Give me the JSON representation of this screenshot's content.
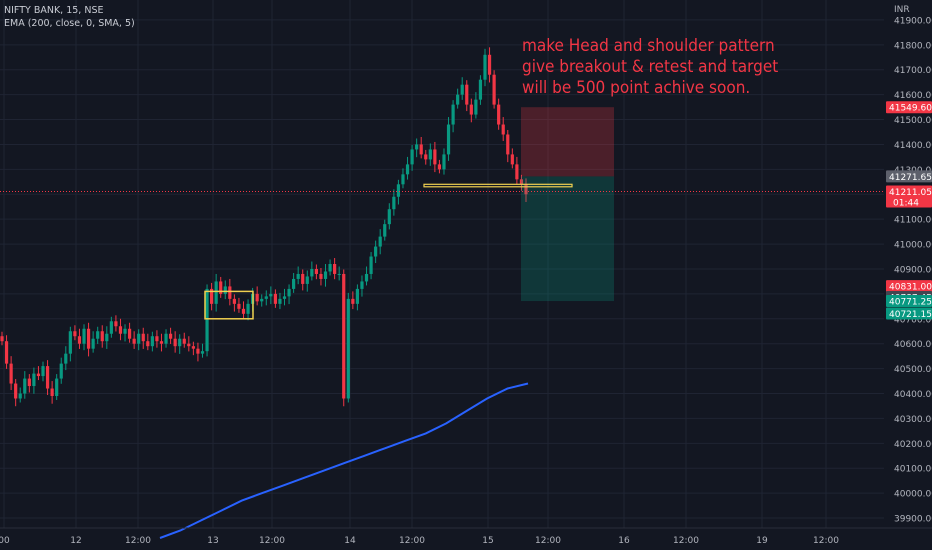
{
  "header": {
    "symbol_line": "NIFTY BANK, 15, NSE",
    "indicator_line": "EMA (200, close, 0, SMA, 5)",
    "currency": "INR"
  },
  "annotation": {
    "lines": [
      "make Head and shoulder pattern",
      "give breakout & retest and target",
      "will be 500 point achive soon."
    ]
  },
  "price_labels": {
    "stop": "41549.60",
    "entry_gray": "41271.65",
    "current": "41211.05",
    "countdown": "01:44",
    "label_red": "40831.00",
    "label_gray": "40787.45",
    "label_green1": "40771.25",
    "label_green2": "40721.15"
  },
  "colors": {
    "background": "#131722",
    "up": "#089981",
    "down": "#f23645",
    "ema": "#2962ff",
    "pattern": "#f0d050",
    "grid": "#1f2433"
  },
  "chart_data": {
    "type": "candlestick",
    "symbol": "NIFTY BANK",
    "interval": "15",
    "exchange": "NSE",
    "y_ticks": [
      39900,
      40000,
      40100,
      40200,
      40300,
      40400,
      40500,
      40600,
      40700,
      40800,
      40900,
      41000,
      41100,
      41200,
      41300,
      41400,
      41500,
      41600,
      41700,
      41800,
      41900
    ],
    "ylim": [
      39860,
      41980
    ],
    "x_tick_labels": [
      "00",
      "12",
      "12:00",
      "13",
      "12:00",
      "14",
      "12:00",
      "15",
      "12:00",
      "16",
      "12:00",
      "19",
      "12:00"
    ],
    "close_series": [
      40610,
      40520,
      40440,
      40380,
      40400,
      40460,
      40430,
      40480,
      40470,
      40510,
      40420,
      40390,
      40460,
      40520,
      40560,
      40650,
      40630,
      40600,
      40660,
      40580,
      40620,
      40650,
      40610,
      40640,
      40690,
      40670,
      40640,
      40660,
      40620,
      40600,
      40640,
      40610,
      40590,
      40630,
      40610,
      40600,
      40640,
      40620,
      40590,
      40620,
      40600,
      40590,
      40580,
      40560,
      40570,
      40820,
      40760,
      40850,
      40800,
      40830,
      40780,
      40760,
      40740,
      40720,
      40760,
      40800,
      40770,
      40780,
      40790,
      40800,
      40760,
      40780,
      40790,
      40820,
      40860,
      40880,
      40840,
      40870,
      40900,
      40880,
      40860,
      40890,
      40920,
      40880,
      40880,
      40380,
      40780,
      40760,
      40820,
      40850,
      40880,
      40950,
      40990,
      41030,
      41080,
      41140,
      41190,
      41240,
      41280,
      41320,
      41380,
      41400,
      41360,
      41340,
      41380,
      41320,
      41300,
      41360,
      41480,
      41560,
      41600,
      41640,
      41560,
      41520,
      41580,
      41660,
      41760,
      41680,
      41560,
      41480,
      41440,
      41360,
      41320,
      41260,
      41240,
      41200
    ],
    "ema_200": [
      39820,
      39850,
      39890,
      39930,
      39970,
      40000,
      40030,
      40060,
      40090,
      40120,
      40150,
      40180,
      40210,
      40240,
      40280,
      40330,
      40380,
      40420,
      40440
    ],
    "pattern_boxes": [
      {
        "price_top": 40810,
        "price_bottom": 40700
      },
      {
        "price_top": 41240,
        "price_bottom": 41230
      }
    ],
    "position": {
      "entry": 41271.65,
      "stop": 41549.6,
      "target": 40771.25,
      "current": 41211.05
    }
  }
}
